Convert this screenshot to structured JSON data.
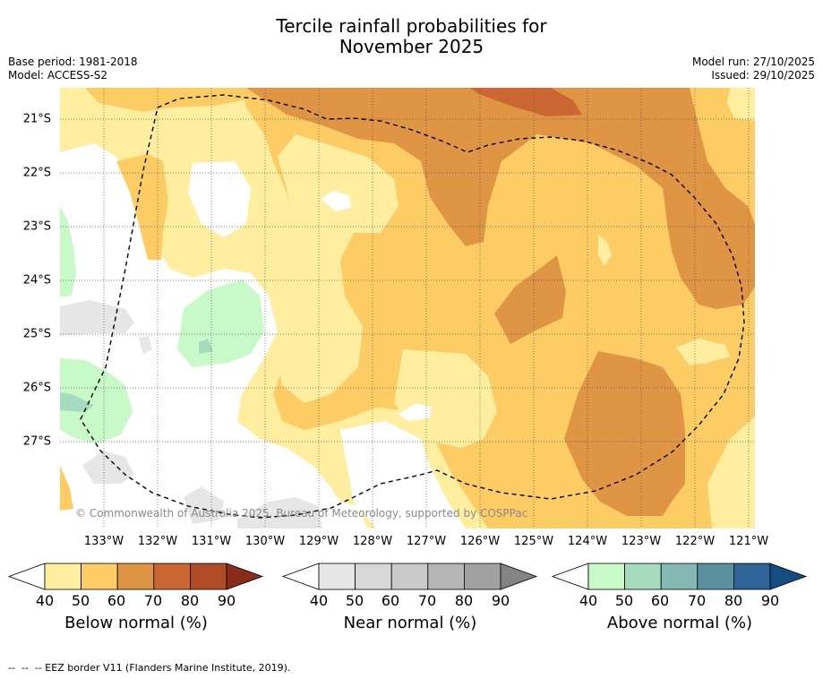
{
  "title_line1": "Tercile rainfall probabilities for",
  "title_line2": "November 2025",
  "base_period": "Base period: 1981-2018",
  "model": "Model: ACCESS-S2",
  "model_run": "Model run: 27/10/2025",
  "issued": "Issued: 29/10/2025",
  "map": {
    "lat_labels": [
      "21°S",
      "22°S",
      "23°S",
      "24°S",
      "25°S",
      "26°S",
      "27°S"
    ],
    "lon_labels": [
      "133°W",
      "132°W",
      "131°W",
      "130°W",
      "129°W",
      "128°W",
      "127°W",
      "126°W",
      "125°W",
      "124°W",
      "123°W",
      "122°W",
      "121°W"
    ],
    "credit": "© Commonwealth of Australia 2025, Bureau of Meteorology, supported by COSPPac",
    "colors": {
      "below": [
        "#ffeda0",
        "#fecc65",
        "#e09545",
        "#cc6632",
        "#b04b28",
        "#8b2b1c"
      ],
      "near": [
        "#e6e6e6",
        "#d8d8d8",
        "#cacaca",
        "#b6b6b6",
        "#a2a2a2",
        "#838383"
      ],
      "above": [
        "#c8f9c8",
        "#a6dbbf",
        "#85b9b4",
        "#5a91a0",
        "#2f6296",
        "#154d82"
      ]
    }
  },
  "colorbars": [
    {
      "label": "Below normal (%)",
      "ticks": [
        "40",
        "50",
        "60",
        "70",
        "80",
        "90"
      ]
    },
    {
      "label": "Near normal (%)",
      "ticks": [
        "40",
        "50",
        "60",
        "70",
        "80",
        "90"
      ]
    },
    {
      "label": "Above normal (%)",
      "ticks": [
        "40",
        "50",
        "60",
        "70",
        "80",
        "90"
      ]
    }
  ],
  "footer": "--  --  -- EEZ border V11 (Flanders Marine Institute, 2019)."
}
